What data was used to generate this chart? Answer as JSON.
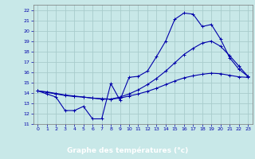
{
  "title": "Graphe des températures (°c)",
  "background_color": "#c8e8e8",
  "grid_color": "#a8cccc",
  "line_color": "#0000aa",
  "xlabel_bg": "#000080",
  "xlabel_fg": "#ffffff",
  "xlim": [
    -0.5,
    23.5
  ],
  "ylim": [
    11,
    22.5
  ],
  "xticks": [
    0,
    1,
    2,
    3,
    4,
    5,
    6,
    7,
    8,
    9,
    10,
    11,
    12,
    13,
    14,
    15,
    16,
    17,
    18,
    19,
    20,
    21,
    22,
    23
  ],
  "yticks": [
    11,
    12,
    13,
    14,
    15,
    16,
    17,
    18,
    19,
    20,
    21,
    22
  ],
  "line1_x": [
    0,
    1,
    2,
    3,
    4,
    5,
    6,
    7,
    8,
    9,
    10,
    11,
    12,
    13,
    14,
    15,
    16,
    17,
    18,
    19,
    20,
    21,
    22,
    23
  ],
  "line1_y": [
    14.2,
    13.9,
    13.6,
    12.3,
    12.3,
    12.7,
    11.5,
    11.5,
    14.9,
    13.3,
    15.5,
    15.6,
    16.1,
    17.5,
    19.0,
    21.1,
    21.7,
    21.6,
    20.4,
    20.6,
    19.2,
    17.4,
    16.3,
    15.6
  ],
  "line2_x": [
    0,
    1,
    2,
    3,
    4,
    5,
    6,
    7,
    8,
    9,
    10,
    11,
    12,
    13,
    14,
    15,
    16,
    17,
    18,
    19,
    20,
    21,
    22,
    23
  ],
  "line2_y": [
    14.2,
    14.05,
    13.9,
    13.75,
    13.65,
    13.6,
    13.5,
    13.4,
    13.4,
    13.5,
    13.7,
    13.9,
    14.15,
    14.45,
    14.8,
    15.15,
    15.45,
    15.65,
    15.8,
    15.9,
    15.85,
    15.7,
    15.55,
    15.5
  ],
  "line3_x": [
    0,
    1,
    2,
    3,
    4,
    5,
    6,
    7,
    8,
    9,
    10,
    11,
    12,
    13,
    14,
    15,
    16,
    17,
    18,
    19,
    20,
    21,
    22,
    23
  ],
  "line3_y": [
    14.2,
    14.1,
    13.95,
    13.8,
    13.7,
    13.6,
    13.5,
    13.45,
    13.4,
    13.6,
    13.9,
    14.3,
    14.8,
    15.4,
    16.1,
    16.9,
    17.7,
    18.3,
    18.8,
    19.0,
    18.5,
    17.6,
    16.6,
    15.6
  ]
}
